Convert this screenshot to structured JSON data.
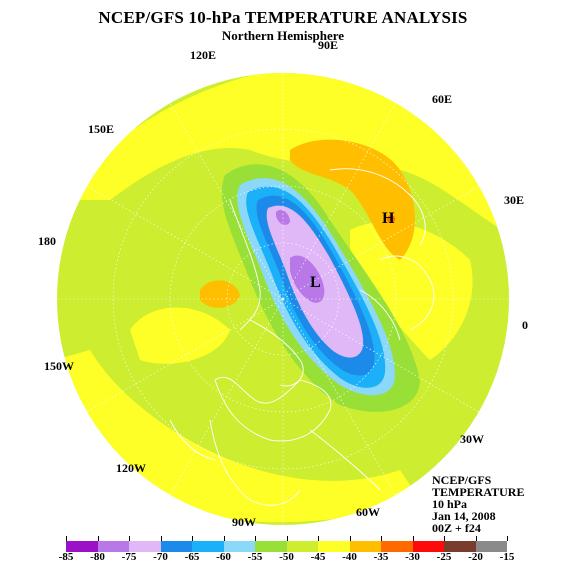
{
  "title": "NCEP/GFS 10-hPa TEMPERATURE ANALYSIS",
  "subtitle": "Northern Hemisphere",
  "longitude_labels": {
    "lon_90e": "90E",
    "lon_120e": "120E",
    "lon_60e": "60E",
    "lon_150e": "150E",
    "lon_30e": "30E",
    "lon_180": "180",
    "lon_0": "0",
    "lon_150w": "150W",
    "lon_30w": "30W",
    "lon_120w": "120W",
    "lon_90w": "90W",
    "lon_60w": "60W"
  },
  "markers": {
    "high": "H",
    "low": "L"
  },
  "info_block": {
    "line1": "NCEP/GFS",
    "line2": "TEMPERATURE",
    "line3": "10 hPa",
    "line4": "Jan 14, 2008",
    "line5": "00Z + f24"
  },
  "legend": {
    "ticks": [
      "-85",
      "-80",
      "-75",
      "-70",
      "-65",
      "-60",
      "-55",
      "-50",
      "-45",
      "-40",
      "-35",
      "-30",
      "-25",
      "-20",
      "-15"
    ],
    "colors": [
      "#9c10c8",
      "#b878e8",
      "#e0b8f8",
      "#1c8ae8",
      "#1cb0f8",
      "#8cd8f8",
      "#98e038",
      "#cced30",
      "#ffff28",
      "#ffbf00",
      "#ff6a00",
      "#ff0a0a",
      "#7a3c2c",
      "#8a8a8a"
    ]
  }
}
